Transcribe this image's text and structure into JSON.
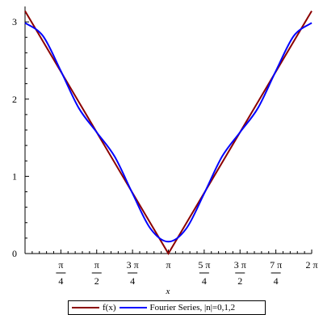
{
  "chart_data": {
    "type": "line",
    "title": "",
    "xlabel": "x",
    "ylabel": "",
    "xlim": [
      0,
      6.2832
    ],
    "ylim": [
      0,
      3.2
    ],
    "grid": false,
    "legend_position": "bottom",
    "x_ticks": [
      {
        "value": 0.7854,
        "num": "π",
        "den": "4"
      },
      {
        "value": 1.5708,
        "num": "π",
        "den": "2"
      },
      {
        "value": 2.3562,
        "num": "3 π",
        "den": "4"
      },
      {
        "value": 3.1416,
        "label": "π"
      },
      {
        "value": 3.927,
        "num": "5 π",
        "den": "4"
      },
      {
        "value": 4.7124,
        "num": "3 π",
        "den": "2"
      },
      {
        "value": 5.4978,
        "num": "7 π",
        "den": "4"
      },
      {
        "value": 6.2832,
        "label": "2 π"
      }
    ],
    "y_ticks": [
      {
        "value": 0,
        "label": "0"
      },
      {
        "value": 1,
        "label": "1"
      },
      {
        "value": 2,
        "label": "2"
      },
      {
        "value": 3,
        "label": "3"
      }
    ],
    "series": [
      {
        "name": "f(x)",
        "color": "#8b0000",
        "x": [
          0,
          3.1416,
          6.2832
        ],
        "values": [
          3.1416,
          0,
          3.1416
        ]
      },
      {
        "name": "Fourier Series, |n|=0,1,2",
        "color": "#0000ff",
        "x": [
          0,
          0.3927,
          0.7854,
          1.1781,
          1.5708,
          1.9635,
          2.3562,
          2.7489,
          3.1416,
          3.5343,
          3.927,
          4.3197,
          4.7124,
          5.1051,
          5.4978,
          5.8905,
          6.2832
        ],
        "values": [
          2.9878,
          2.8182,
          2.3636,
          1.8843,
          1.5708,
          1.2573,
          0.778,
          0.3234,
          0.1538,
          0.3234,
          0.778,
          1.2573,
          1.5708,
          1.8843,
          2.3636,
          2.8182,
          2.9878
        ]
      }
    ]
  },
  "legend": {
    "items": [
      {
        "label": "f(x)",
        "color": "#8b0000"
      },
      {
        "label": "Fourier Series, |n|=0,1,2",
        "color": "#0000ff"
      }
    ]
  }
}
